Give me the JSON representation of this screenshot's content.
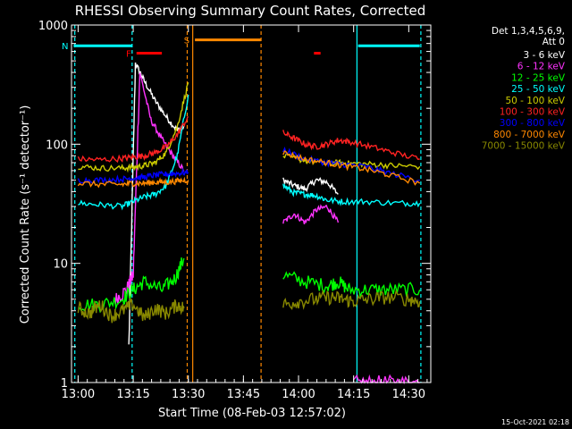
{
  "chart_data": {
    "type": "line",
    "title": "RHESSI Observing Summary Count Rates, Corrected",
    "xlabel": "Start Time (08-Feb-03 12:57:02)",
    "ylabel": "Corrected Count Rate (s⁻¹ detector⁻¹)",
    "y_scale": "log",
    "ylim": [
      1,
      1000
    ],
    "x_range_minutes": [
      12.97,
      14.6
    ],
    "x_ticks": [
      {
        "t": 13.0,
        "label": "13:00"
      },
      {
        "t": 13.25,
        "label": "13:15"
      },
      {
        "t": 13.5,
        "label": "13:30"
      },
      {
        "t": 13.75,
        "label": "13:45"
      },
      {
        "t": 14.0,
        "label": "14:00"
      },
      {
        "t": 14.25,
        "label": "14:15"
      },
      {
        "t": 14.5,
        "label": "14:30"
      }
    ],
    "y_ticks": [
      {
        "v": 1,
        "label": "1"
      },
      {
        "v": 10,
        "label": "10"
      },
      {
        "v": 100,
        "label": "100"
      },
      {
        "v": 1000,
        "label": "1000"
      }
    ],
    "legend": {
      "header": [
        "Det 1,3,4,5,6,9,",
        "Att 0"
      ],
      "placement": "right"
    },
    "series": [
      {
        "name": "3 - 6 keV",
        "color": "#ffffff",
        "segments": [
          {
            "t": [
              13.23,
              13.26,
              13.3,
              13.35,
              13.4,
              13.45,
              13.48
            ],
            "v": [
              2,
              480,
              340,
              230,
              170,
              130,
              140
            ]
          },
          {
            "t": [
              13.93,
              13.98,
              14.03,
              14.08,
              14.13,
              14.18
            ],
            "v": [
              50,
              45,
              42,
              50,
              48,
              38
            ]
          }
        ]
      },
      {
        "name": "6 - 12 keV",
        "color": "#ff33ff",
        "segments": [
          {
            "t": [
              13.17,
              13.22,
              13.25,
              13.28,
              13.33,
              13.38,
              13.43,
              13.48
            ],
            "v": [
              5,
              6,
              8,
              400,
              160,
              110,
              80,
              60
            ]
          },
          {
            "t": [
              13.93,
              13.98,
              14.03,
              14.08,
              14.13,
              14.18
            ],
            "v": [
              22,
              26,
              22,
              28,
              30,
              22
            ]
          },
          {
            "t": [
              14.25,
              14.35,
              14.45,
              14.55
            ],
            "v": [
              1,
              1,
              1,
              1
            ]
          }
        ]
      },
      {
        "name": "12 - 25 keV",
        "color": "#00ff00",
        "segments": [
          {
            "t": [
              13.0,
              13.1,
              13.2,
              13.25,
              13.3,
              13.38,
              13.44,
              13.48
            ],
            "v": [
              4.5,
              4.5,
              5,
              6,
              7,
              6,
              7.5,
              11
            ]
          },
          {
            "t": [
              13.93,
              14.03,
              14.13,
              14.18,
              14.23,
              14.33,
              14.43,
              14.55
            ],
            "v": [
              8,
              7,
              6.5,
              7,
              6,
              6,
              6,
              6
            ]
          }
        ]
      },
      {
        "name": "25 - 50 keV",
        "color": "#00ffff",
        "segments": [
          {
            "t": [
              13.0,
              13.1,
              13.2,
              13.25,
              13.3,
              13.35,
              13.4,
              13.45,
              13.5
            ],
            "v": [
              32,
              31,
              30,
              33,
              36,
              38,
              45,
              80,
              260
            ]
          },
          {
            "t": [
              13.93,
              13.98,
              14.03,
              14.08,
              14.13,
              14.2,
              14.3,
              14.45,
              14.55
            ],
            "v": [
              45,
              39,
              38,
              37,
              34,
              33,
              33,
              32,
              32
            ]
          }
        ]
      },
      {
        "name": "50 - 100 keV",
        "color": "#cccc00",
        "segments": [
          {
            "t": [
              13.0,
              13.1,
              13.2,
              13.25,
              13.3,
              13.35,
              13.4,
              13.45,
              13.5
            ],
            "v": [
              65,
              63,
              63,
              64,
              66,
              70,
              85,
              140,
              330
            ]
          },
          {
            "t": [
              13.93,
              14.03,
              14.13,
              14.18,
              14.23,
              14.33,
              14.43,
              14.55
            ],
            "v": [
              80,
              73,
              68,
              70,
              69,
              68,
              66,
              65
            ]
          }
        ]
      },
      {
        "name": "100 - 300 keV",
        "color": "#ff2222",
        "segments": [
          {
            "t": [
              13.0,
              13.1,
              13.2,
              13.25,
              13.3,
              13.35,
              13.4,
              13.45,
              13.5
            ],
            "v": [
              75,
              74,
              76,
              78,
              80,
              85,
              95,
              120,
              170
            ]
          },
          {
            "t": [
              13.93,
              13.98,
              14.03,
              14.08,
              14.13,
              14.18,
              14.23,
              14.33,
              14.43,
              14.55
            ],
            "v": [
              125,
              112,
              100,
              95,
              100,
              108,
              105,
              95,
              85,
              75
            ]
          }
        ]
      },
      {
        "name": "300 - 800 keV",
        "color": "#0000ff",
        "segments": [
          {
            "t": [
              13.0,
              13.1,
              13.2,
              13.25,
              13.3,
              13.35,
              13.4,
              13.45,
              13.5
            ],
            "v": [
              50,
              50,
              51,
              52,
              53,
              55,
              56,
              57,
              58
            ]
          },
          {
            "t": [
              13.93,
              14.03,
              14.13,
              14.2,
              14.3,
              14.4,
              14.55
            ],
            "v": [
              90,
              75,
              70,
              68,
              65,
              58,
              50
            ]
          }
        ]
      },
      {
        "name": "800 - 7000 keV",
        "color": "#ff8800",
        "segments": [
          {
            "t": [
              13.0,
              13.1,
              13.2,
              13.25,
              13.3,
              13.35,
              13.4,
              13.45,
              13.5
            ],
            "v": [
              47,
              46,
              46,
              47,
              47,
              48,
              48,
              49,
              50
            ]
          },
          {
            "t": [
              13.93,
              14.03,
              14.13,
              14.2,
              14.3,
              14.4,
              14.55
            ],
            "v": [
              85,
              75,
              70,
              66,
              62,
              56,
              47
            ]
          }
        ]
      },
      {
        "name": "7000 - 15000 keV",
        "color": "#888800",
        "segments": [
          {
            "t": [
              13.0,
              13.05,
              13.1,
              13.15,
              13.2,
              13.25,
              13.3,
              13.35,
              13.4,
              13.45,
              13.48
            ],
            "v": [
              4.2,
              3.8,
              4.5,
              3.6,
              4.0,
              4.5,
              3.5,
              4.2,
              3.8,
              4.5,
              4.2
            ]
          },
          {
            "t": [
              13.93,
              14.0,
              14.08,
              14.15,
              14.2,
              14.25,
              14.32,
              14.4,
              14.5,
              14.55
            ],
            "v": [
              4.5,
              4.8,
              5,
              5.2,
              5,
              4.8,
              5,
              5.2,
              5,
              4.8
            ]
          }
        ]
      }
    ],
    "markers": [
      {
        "label": "F",
        "color": "#ff0000",
        "t_start": 13.265,
        "t_end": 13.38,
        "v": 580
      },
      {
        "label": "N",
        "color": "#00ffff",
        "t_start": 12.98,
        "t_end": 13.245,
        "v": 670
      },
      {
        "label": "S",
        "color": "#ff8800",
        "t_start": 13.53,
        "t_end": 13.83,
        "v": 750
      },
      {
        "label": "",
        "color": "#ff0000",
        "t_start": 14.07,
        "t_end": 14.1,
        "v": 580
      },
      {
        "label": "",
        "color": "#00ffff",
        "t_start": 14.27,
        "t_end": 14.55,
        "v": 670
      }
    ],
    "vlines": [
      {
        "t": 12.985,
        "color": "#00ffff",
        "style": "dashed"
      },
      {
        "t": 13.245,
        "color": "#00ffff",
        "style": "dashed"
      },
      {
        "t": 13.495,
        "color": "#ff8800",
        "style": "dashed"
      },
      {
        "t": 13.52,
        "color": "#ff8800",
        "style": "solid"
      },
      {
        "t": 13.83,
        "color": "#ff8800",
        "style": "dashed"
      },
      {
        "t": 14.265,
        "color": "#00ffff",
        "style": "solid"
      },
      {
        "t": 14.555,
        "color": "#00ffff",
        "style": "dashed"
      }
    ]
  },
  "footer": {
    "timestamp": "15-Oct-2021 02:18"
  }
}
